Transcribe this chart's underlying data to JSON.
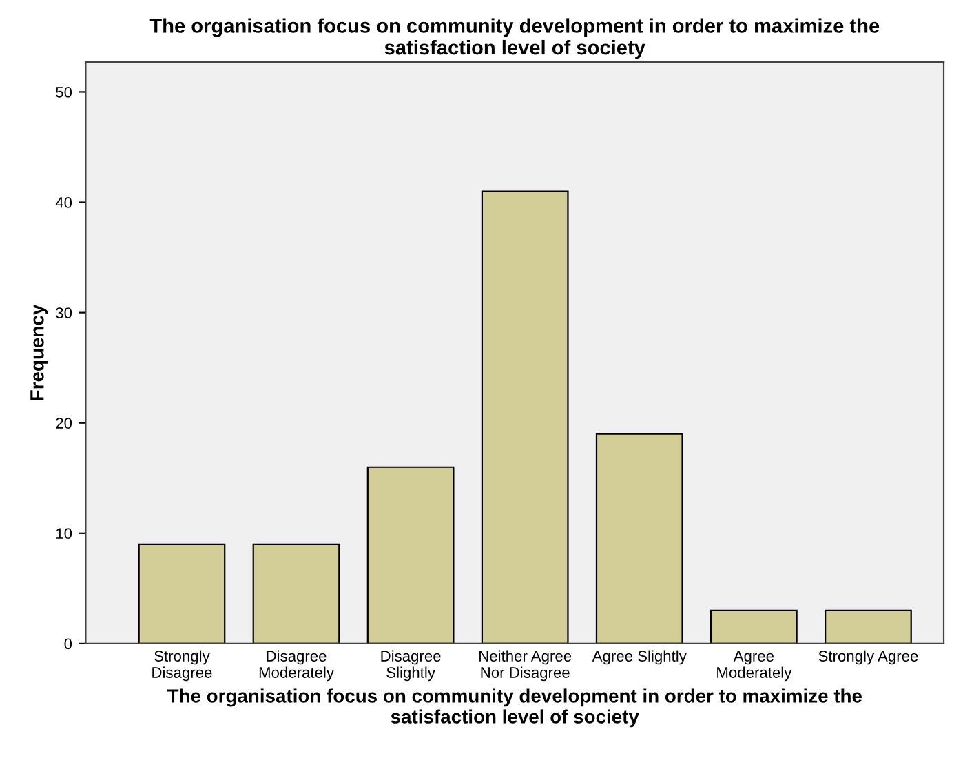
{
  "chart_data": {
    "type": "bar",
    "title": "The organisation focus on community development in order to maximize the\nsatisfaction level of society",
    "xlabel": "The organisation focus on community development in order to maximize the\nsatisfaction level of society",
    "ylabel": "Frequency",
    "categories": [
      "Strongly\nDisagree",
      "Disagree\nModerately",
      "Disagree\nSlightly",
      "Neither Agree\nNor Disagree",
      "Agree Slightly",
      "Agree\nModerately",
      "Strongly Agree"
    ],
    "values": [
      9,
      9,
      16,
      41,
      19,
      3,
      3
    ],
    "color": "#d3ce97",
    "ylim": [
      0,
      52.7
    ],
    "yticks": [
      0,
      10,
      20,
      30,
      40,
      50
    ],
    "grid": false
  }
}
